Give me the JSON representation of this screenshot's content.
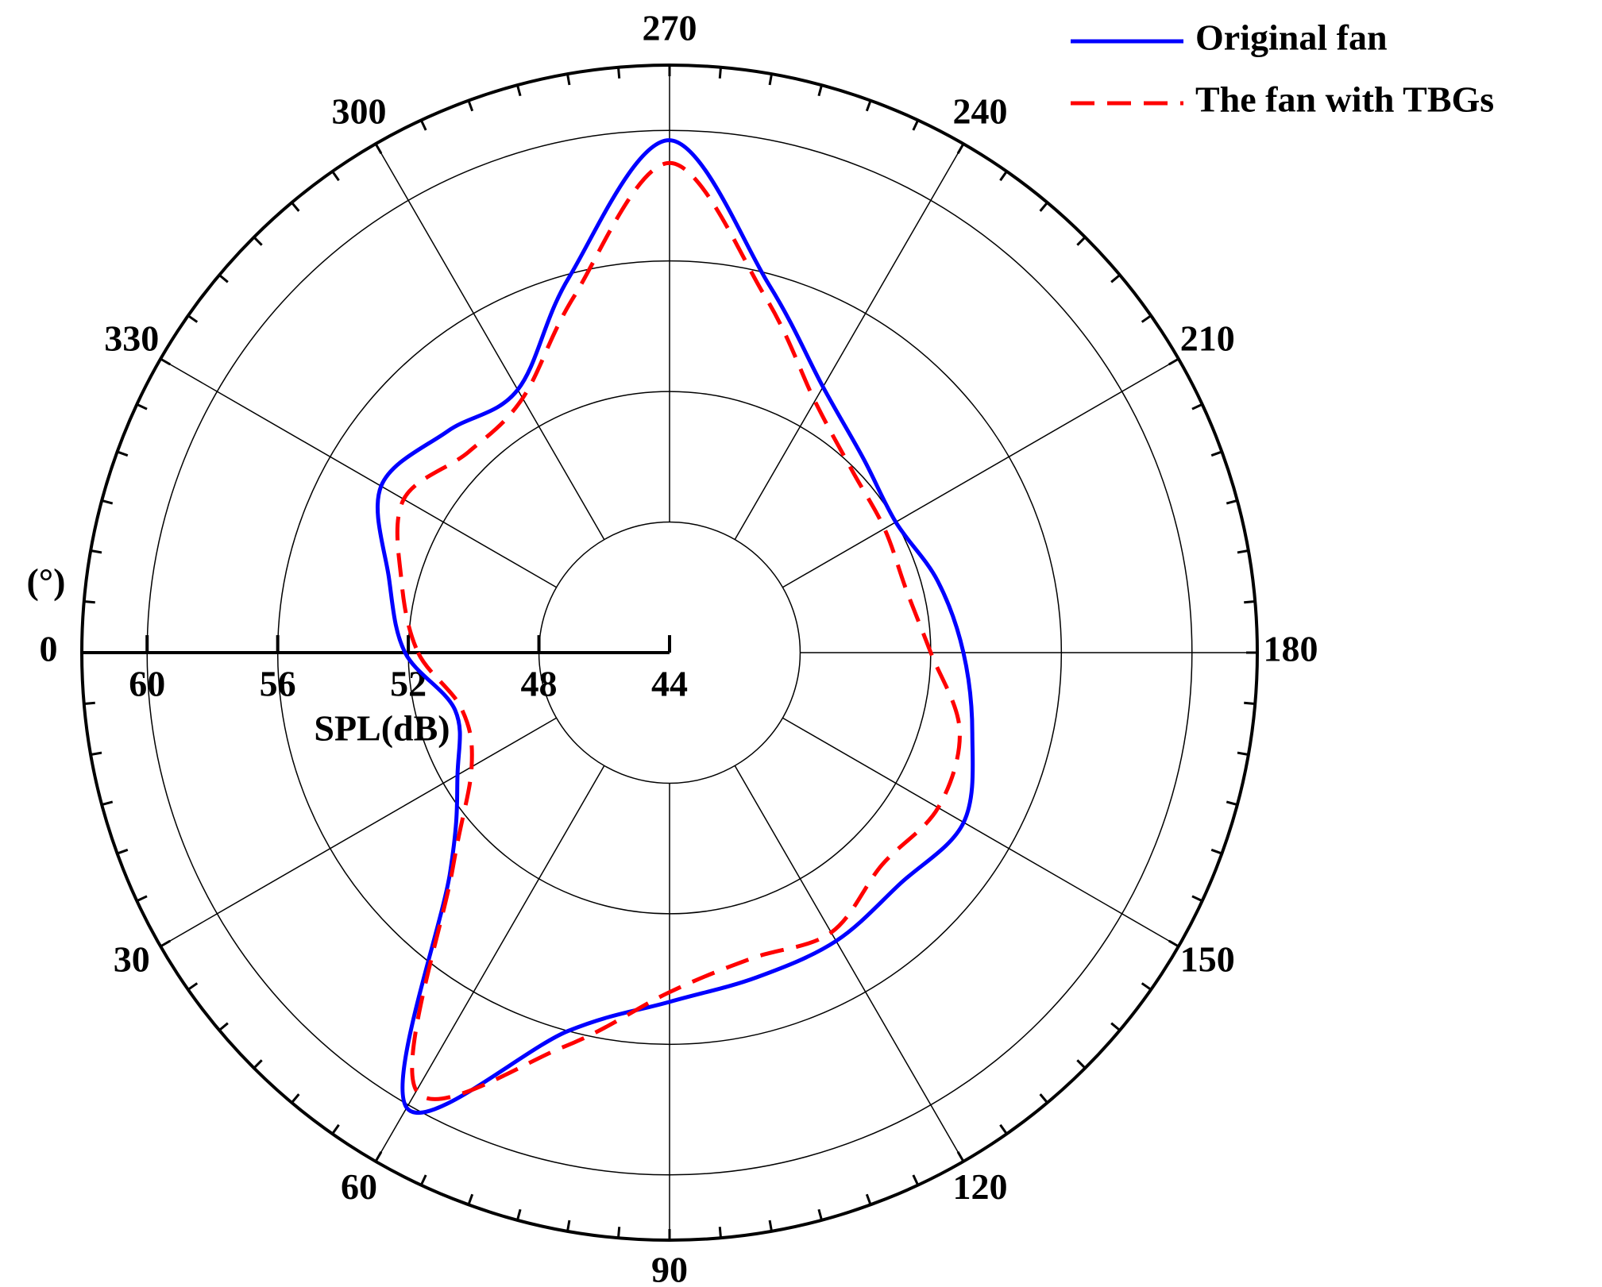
{
  "chart_data": {
    "type": "polar",
    "angle_label": "(°)",
    "r_axis_label": "SPL(dB)",
    "x": [
      0,
      15,
      30,
      45,
      60,
      75,
      90,
      105,
      120,
      135,
      150,
      165,
      180,
      195,
      210,
      225,
      240,
      255,
      270,
      285,
      300,
      315,
      330,
      345
    ],
    "xticks": [
      0,
      30,
      60,
      90,
      120,
      150,
      180,
      210,
      240,
      270,
      300,
      330
    ],
    "rlim": [
      44,
      62
    ],
    "rticks": [
      44,
      48,
      52,
      56,
      60
    ],
    "legend": "upper right",
    "series": [
      {
        "name": "Original fan",
        "color": "#0000ff",
        "linestyle": "solid",
        "values": [
          52.1,
          50.8,
          51.5,
          53.5,
          60.1,
          56.0,
          54.7,
          54.3,
          54.2,
          54.0,
          54.4,
          53.6,
          53.0,
          52.5,
          52.0,
          52.4,
          53.4,
          55.7,
          59.7,
          55.9,
          53.3,
          53.6,
          54.2,
          52.9
        ]
      },
      {
        "name": "The fan with TBGs",
        "color": "#ff0000",
        "linestyle": "dashed",
        "values": [
          51.7,
          50.6,
          51.0,
          53.4,
          59.5,
          56.5,
          54.4,
          53.7,
          53.9,
          53.2,
          53.5,
          53.2,
          52.0,
          51.5,
          51.6,
          51.9,
          52.9,
          55.3,
          59.0,
          55.3,
          53.0,
          52.7,
          53.4,
          52.5
        ]
      }
    ]
  }
}
